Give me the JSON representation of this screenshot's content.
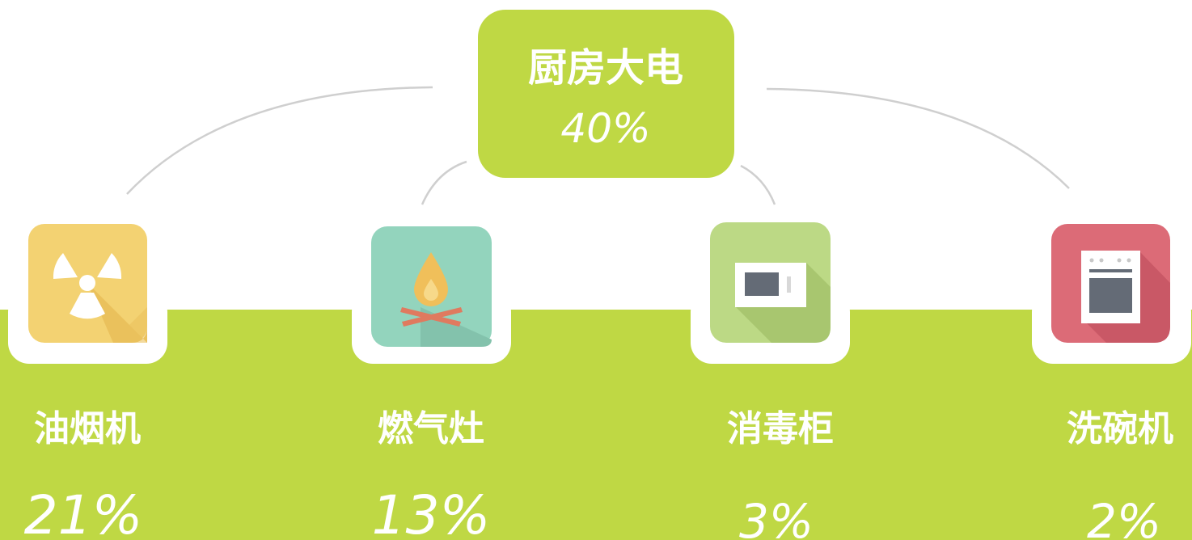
{
  "root": {
    "label": "厨房大电",
    "value": "40%"
  },
  "items": [
    {
      "label": "油烟机",
      "value": "21%"
    },
    {
      "label": "燃气灶",
      "value": "13%"
    },
    {
      "label": "消毒柜",
      "value": "3%"
    },
    {
      "label": "洗碗机",
      "value": "2%"
    }
  ]
}
